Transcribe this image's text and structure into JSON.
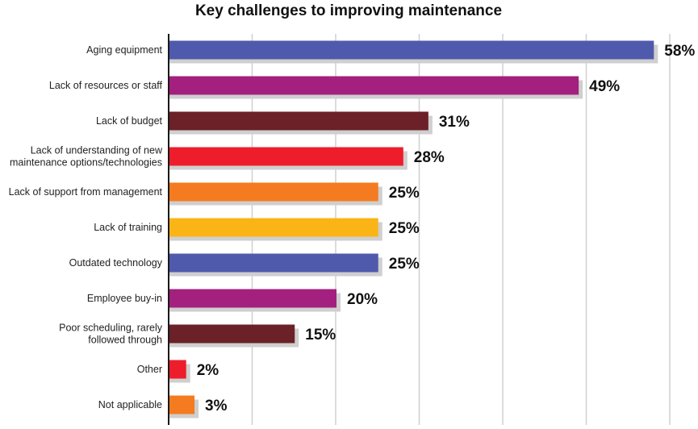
{
  "chart_data": {
    "type": "bar",
    "orientation": "horizontal",
    "title": "Key challenges to improving maintenance",
    "xlabel": "",
    "ylabel": "",
    "xlim": [
      0,
      60
    ],
    "grid": true,
    "legend": "none",
    "value_suffix": "%",
    "categories": [
      [
        "Aging equipment"
      ],
      [
        "Lack of resources or staff"
      ],
      [
        "Lack of budget"
      ],
      [
        "Lack of understanding of new",
        "maintenance options/technologies"
      ],
      [
        "Lack of support from management"
      ],
      [
        "Lack of training"
      ],
      [
        "Outdated technology"
      ],
      [
        "Employee buy-in"
      ],
      [
        "Poor scheduling, rarely",
        "followed through"
      ],
      [
        "Other"
      ],
      [
        "Not applicable"
      ]
    ],
    "values": [
      58,
      49,
      31,
      28,
      25,
      25,
      25,
      20,
      15,
      2,
      3
    ],
    "value_labels": [
      "58%",
      "49%",
      "31%",
      "28%",
      "25%",
      "25%",
      "25%",
      "20%",
      "15%",
      "2%",
      "3%"
    ],
    "colors": [
      "#4f5aad",
      "#a3207f",
      "#6b2127",
      "#ee1d2b",
      "#f47b20",
      "#fbb415",
      "#4f5aad",
      "#a3207f",
      "#6b2127",
      "#ee1d2b",
      "#f47b20"
    ],
    "shadow_color": "#cfcfcf",
    "grid_color": "#d0d0d0",
    "axis_color": "#1a1a1a"
  }
}
